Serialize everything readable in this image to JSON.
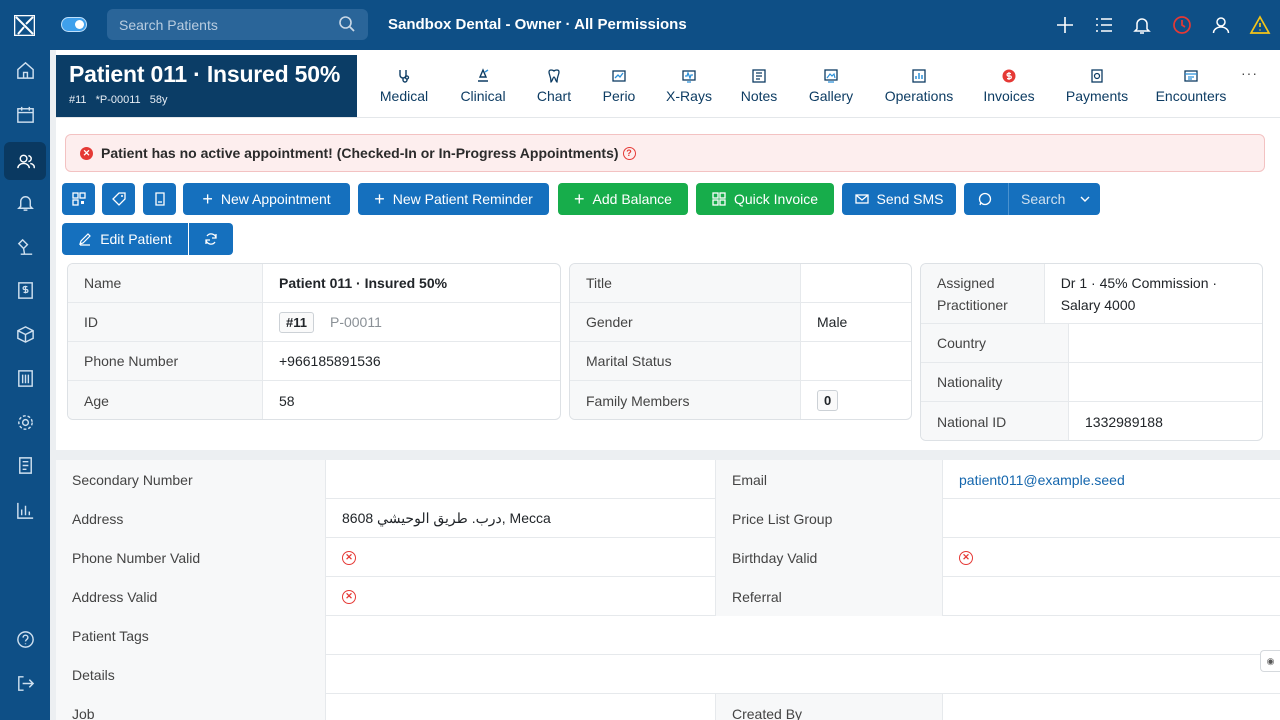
{
  "header": {
    "search_placeholder": "Search Patients",
    "practice_title": "Sandbox Dental - Owner · All Permissions",
    "icons": [
      "plus-icon",
      "list-icon",
      "bell-icon",
      "clock-icon",
      "user-icon",
      "warning-icon"
    ]
  },
  "sidebar": {
    "items": [
      "home-icon",
      "calendar-icon",
      "patients-icon",
      "bell-icon",
      "lab-icon",
      "billing-icon",
      "box-icon",
      "building-icon",
      "settings-icon",
      "ledger-icon",
      "reports-icon"
    ],
    "bottom": [
      "help-icon",
      "logout-icon"
    ],
    "active": "patients-icon"
  },
  "patient": {
    "name": "Patient 011 · Insured 50%",
    "num": "#11",
    "code": "*P-00011",
    "age": "58y"
  },
  "tabs": [
    "Medical",
    "Clinical",
    "Chart",
    "Perio",
    "X-Rays",
    "Notes",
    "Gallery",
    "Operations",
    "Invoices",
    "Payments",
    "Encounters"
  ],
  "tab_more": "···",
  "alert": {
    "text": "Patient has no active appointment! (Checked-In or In-Progress Appointments)"
  },
  "actions": {
    "new_appointment": "New Appointment",
    "new_reminder": "New Patient Reminder",
    "add_balance": "Add Balance",
    "quick_invoice": "Quick Invoice",
    "send_sms": "Send SMS",
    "search": "Search",
    "edit_patient": "Edit Patient"
  },
  "info_left": {
    "name_label": "Name",
    "name_value": "Patient 011 · Insured 50%",
    "id_label": "ID",
    "id_badge": "#11",
    "id_code": "P-00011",
    "phone_label": "Phone Number",
    "phone_value": "+966185891536",
    "age_label": "Age",
    "age_value": "58"
  },
  "info_mid": {
    "title_label": "Title",
    "title_value": "",
    "gender_label": "Gender",
    "gender_value": "Male",
    "marital_label": "Marital Status",
    "marital_value": "",
    "family_label": "Family Members",
    "family_value": "0"
  },
  "info_right": {
    "practitioner_label": "Assigned Practitioner",
    "practitioner_value": "Dr 1 · 45% Commission · Salary 4000",
    "country_label": "Country",
    "country_value": "",
    "nationality_label": "Nationality",
    "nationality_value": "",
    "national_id_label": "National ID",
    "national_id_value": "1332989188"
  },
  "details": {
    "secondary_label": "Secondary Number",
    "secondary_value": "",
    "email_label": "Email",
    "email_value": "patient011@example.seed",
    "address_label": "Address",
    "address_value": "8608 درب. طريق الوحيشي, Mecca",
    "pricelist_label": "Price List Group",
    "pricelist_value": "",
    "phone_valid_label": "Phone Number Valid",
    "birthday_valid_label": "Birthday Valid",
    "address_valid_label": "Address Valid",
    "referral_label": "Referral",
    "referral_value": "",
    "tags_label": "Patient Tags",
    "details_label": "Details",
    "job_label": "Job",
    "created_by_label": "Created By"
  }
}
